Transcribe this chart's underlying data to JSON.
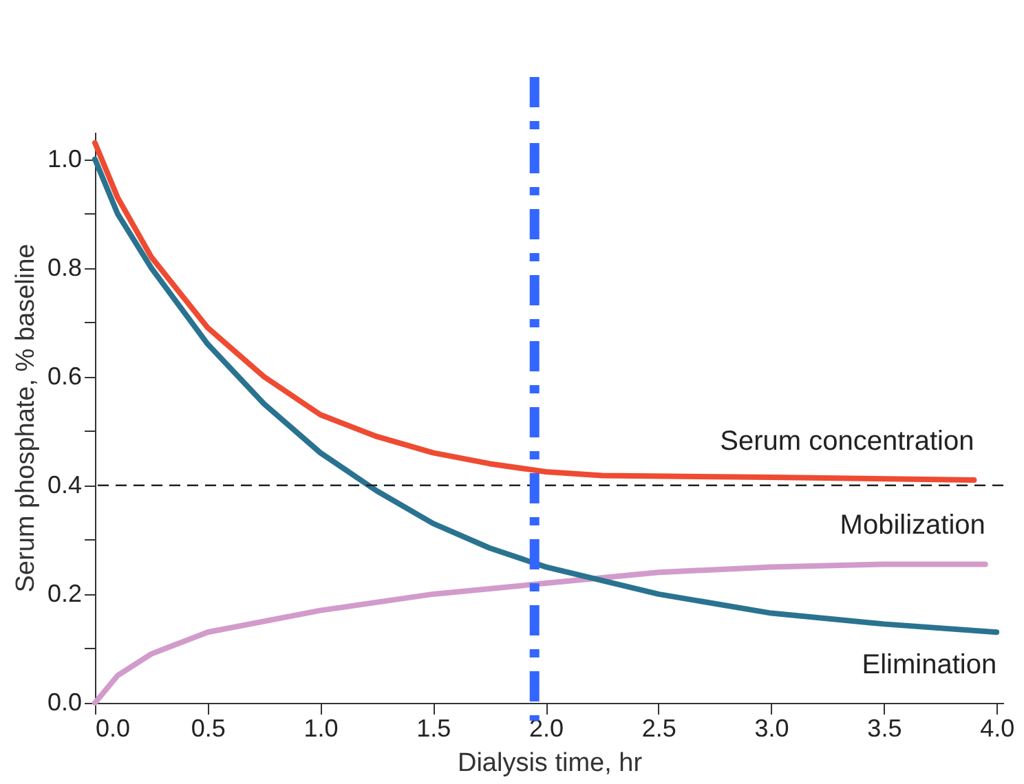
{
  "chart_data": {
    "type": "line",
    "xlabel": "Dialysis time, hr",
    "ylabel": "Serum phosphate, % baseline",
    "xlim": [
      0,
      4.03
    ],
    "ylim": [
      0,
      1.05
    ],
    "xticks": [
      {
        "value": 0,
        "label": "0.0"
      },
      {
        "value": 0.5,
        "label": "0.5"
      },
      {
        "value": 1,
        "label": "1.0"
      },
      {
        "value": 1.5,
        "label": "1.5"
      },
      {
        "value": 2,
        "label": "2.0"
      },
      {
        "value": 2.5,
        "label": "2.5"
      },
      {
        "value": 3,
        "label": "3.0"
      },
      {
        "value": 3.5,
        "label": "3.5"
      },
      {
        "value": 4,
        "label": "4.0"
      }
    ],
    "yticks": [
      {
        "value": 0,
        "label": "0.0"
      },
      {
        "value": 0.1,
        "label": null
      },
      {
        "value": 0.2,
        "label": "0.2"
      },
      {
        "value": 0.3,
        "label": null
      },
      {
        "value": 0.4,
        "label": "0.4"
      },
      {
        "value": 0.5,
        "label": null
      },
      {
        "value": 0.6,
        "label": "0.6"
      },
      {
        "value": 0.7,
        "label": null
      },
      {
        "value": 0.8,
        "label": "0.8"
      },
      {
        "value": 0.9,
        "label": null
      },
      {
        "value": 1,
        "label": "1.0"
      }
    ],
    "grid": false,
    "marker": "none",
    "line_style": "solid",
    "series": [
      {
        "name": "Serum concentration",
        "color": "#ee4b32",
        "x": [
          0,
          0.1,
          0.25,
          0.5,
          0.75,
          1.0,
          1.25,
          1.5,
          1.75,
          2.0,
          2.25,
          3.0,
          3.9
        ],
        "values": [
          1.03,
          0.93,
          0.82,
          0.69,
          0.6,
          0.53,
          0.49,
          0.46,
          0.44,
          0.425,
          0.418,
          0.415,
          0.41
        ]
      },
      {
        "name": "Mobilization",
        "color": "#d29bcb",
        "x": [
          0,
          0.1,
          0.25,
          0.5,
          1.0,
          1.5,
          2.0,
          2.5,
          3.0,
          3.5,
          3.95
        ],
        "values": [
          0,
          0.05,
          0.09,
          0.13,
          0.17,
          0.2,
          0.22,
          0.24,
          0.25,
          0.255,
          0.255
        ]
      },
      {
        "name": "Elimination",
        "color": "#2a7390",
        "x": [
          0,
          0.1,
          0.25,
          0.5,
          0.75,
          1.0,
          1.25,
          1.5,
          1.75,
          2.0,
          2.5,
          3.0,
          3.5,
          4.0
        ],
        "values": [
          1.0,
          0.9,
          0.8,
          0.66,
          0.55,
          0.46,
          0.39,
          0.33,
          0.285,
          0.25,
          0.2,
          0.165,
          0.145,
          0.13
        ]
      }
    ],
    "ref_lines": [
      {
        "axis": "y",
        "value": 0.4,
        "color": "#222222",
        "line_style": "dashed"
      },
      {
        "axis": "x",
        "value": 1.95,
        "color": "#3366ff",
        "line_style": "dashed"
      }
    ]
  }
}
